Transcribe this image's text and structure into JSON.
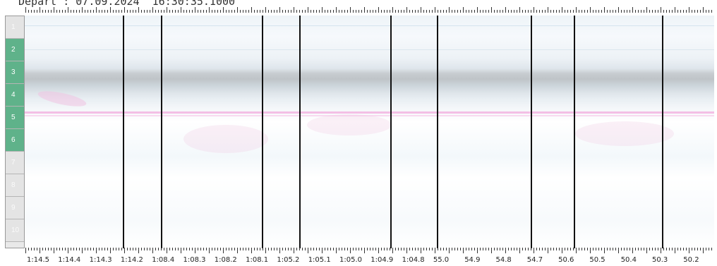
{
  "header": {
    "text": "Depart : 07.09.2024  16:30:35.1000"
  },
  "lanes": [
    {
      "label": "1",
      "active": false
    },
    {
      "label": "2",
      "active": true
    },
    {
      "label": "3",
      "active": true
    },
    {
      "label": "4",
      "active": true
    },
    {
      "label": "5",
      "active": true
    },
    {
      "label": "6",
      "active": true
    },
    {
      "label": "7",
      "active": false
    },
    {
      "label": "8",
      "active": false
    },
    {
      "label": "9",
      "active": false
    },
    {
      "label": "10",
      "active": false
    }
  ],
  "time_labels": [
    "1:14.5",
    "1:14.4",
    "1:14.3",
    "1:14.2",
    "1:08.4",
    "1:08.3",
    "1:08.2",
    "1:08.1",
    "1:05.2",
    "1:05.1",
    "1:05.0",
    "1:04.9",
    "1:04.8",
    "55.0",
    "54.9",
    "54.8",
    "54.7",
    "50.6",
    "50.5",
    "50.4",
    "50.3",
    "50.2"
  ],
  "colors": {
    "lane_active": "#5fb28a",
    "finish_line": "#111111",
    "trace": "#f2b5e0"
  }
}
